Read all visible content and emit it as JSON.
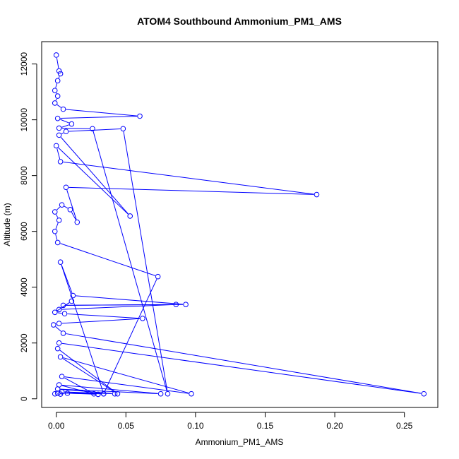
{
  "chart_data": {
    "type": "line",
    "title": "ATOM4 Southbound Ammonium_PM1_AMS",
    "xlabel": "Ammonium_PM1_AMS",
    "ylabel": "Altitude (m)",
    "xlim": [
      -0.0105,
      0.274
    ],
    "ylim": [
      -310,
      12800
    ],
    "xticks": [
      0.0,
      0.05,
      0.1,
      0.15,
      0.2,
      0.25
    ],
    "xtick_labels": [
      "0.00",
      "0.05",
      "0.10",
      "0.15",
      "0.20",
      "0.25"
    ],
    "yticks": [
      0,
      2000,
      4000,
      6000,
      8000,
      10000,
      12000
    ],
    "ytick_labels": [
      "0",
      "2000",
      "4000",
      "6000",
      "8000",
      "10000",
      "12000"
    ],
    "grid": false,
    "legend": "none",
    "series": [
      {
        "color": "#0000ff",
        "marker": "open-circle",
        "points": [
          {
            "x": 0.0,
            "y": 12320
          },
          {
            "x": 0.002,
            "y": 11750
          },
          {
            "x": 0.003,
            "y": 11650
          },
          {
            "x": 0.001,
            "y": 11400
          },
          {
            "x": -0.001,
            "y": 11050
          },
          {
            "x": 0.001,
            "y": 10850
          },
          {
            "x": -0.001,
            "y": 10600
          },
          {
            "x": 0.005,
            "y": 10380
          },
          {
            "x": 0.06,
            "y": 10130
          },
          {
            "x": 0.001,
            "y": 10050
          },
          {
            "x": 0.011,
            "y": 9850
          },
          {
            "x": 0.002,
            "y": 9700
          },
          {
            "x": 0.026,
            "y": 9680
          },
          {
            "x": 0.08,
            "y": 180
          },
          {
            "x": 0.048,
            "y": 9680
          },
          {
            "x": 0.007,
            "y": 9580
          },
          {
            "x": 0.002,
            "y": 9450
          },
          {
            "x": 0.053,
            "y": 6550
          },
          {
            "x": 0.0,
            "y": 9070
          },
          {
            "x": 0.003,
            "y": 8500
          },
          {
            "x": 0.187,
            "y": 7320
          },
          {
            "x": 0.007,
            "y": 7580
          },
          {
            "x": 0.015,
            "y": 6330
          },
          {
            "x": 0.01,
            "y": 6780
          },
          {
            "x": 0.004,
            "y": 6950
          },
          {
            "x": -0.001,
            "y": 6700
          },
          {
            "x": 0.002,
            "y": 6400
          },
          {
            "x": -0.001,
            "y": 6000
          },
          {
            "x": 0.001,
            "y": 5600
          },
          {
            "x": 0.073,
            "y": 4380
          },
          {
            "x": 0.034,
            "y": 180
          },
          {
            "x": 0.003,
            "y": 4900
          },
          {
            "x": 0.012,
            "y": 3700
          },
          {
            "x": 0.093,
            "y": 3380
          },
          {
            "x": 0.005,
            "y": 3350
          },
          {
            "x": 0.086,
            "y": 3380
          },
          {
            "x": 0.002,
            "y": 3200
          },
          {
            "x": 0.011,
            "y": 3500
          },
          {
            "x": -0.001,
            "y": 3100
          },
          {
            "x": 0.006,
            "y": 3050
          },
          {
            "x": 0.062,
            "y": 2880
          },
          {
            "x": 0.002,
            "y": 2700
          },
          {
            "x": -0.002,
            "y": 2650
          },
          {
            "x": 0.005,
            "y": 2350
          },
          {
            "x": 0.264,
            "y": 180
          },
          {
            "x": 0.002,
            "y": 2000
          },
          {
            "x": 0.001,
            "y": 1800
          },
          {
            "x": 0.044,
            "y": 180
          },
          {
            "x": 0.003,
            "y": 1500
          },
          {
            "x": 0.097,
            "y": 180
          },
          {
            "x": 0.004,
            "y": 800
          },
          {
            "x": 0.027,
            "y": 180
          },
          {
            "x": 0.002,
            "y": 500
          },
          {
            "x": 0.075,
            "y": 180
          },
          {
            "x": 0.001,
            "y": 350
          },
          {
            "x": 0.042,
            "y": 180
          },
          {
            "x": 0.004,
            "y": 250
          },
          {
            "x": 0.03,
            "y": 160
          },
          {
            "x": 0.008,
            "y": 200
          },
          {
            "x": 0.034,
            "y": 180
          },
          {
            "x": 0.001,
            "y": 200
          },
          {
            "x": 0.003,
            "y": 170
          },
          {
            "x": -0.001,
            "y": 180
          }
        ]
      }
    ]
  }
}
